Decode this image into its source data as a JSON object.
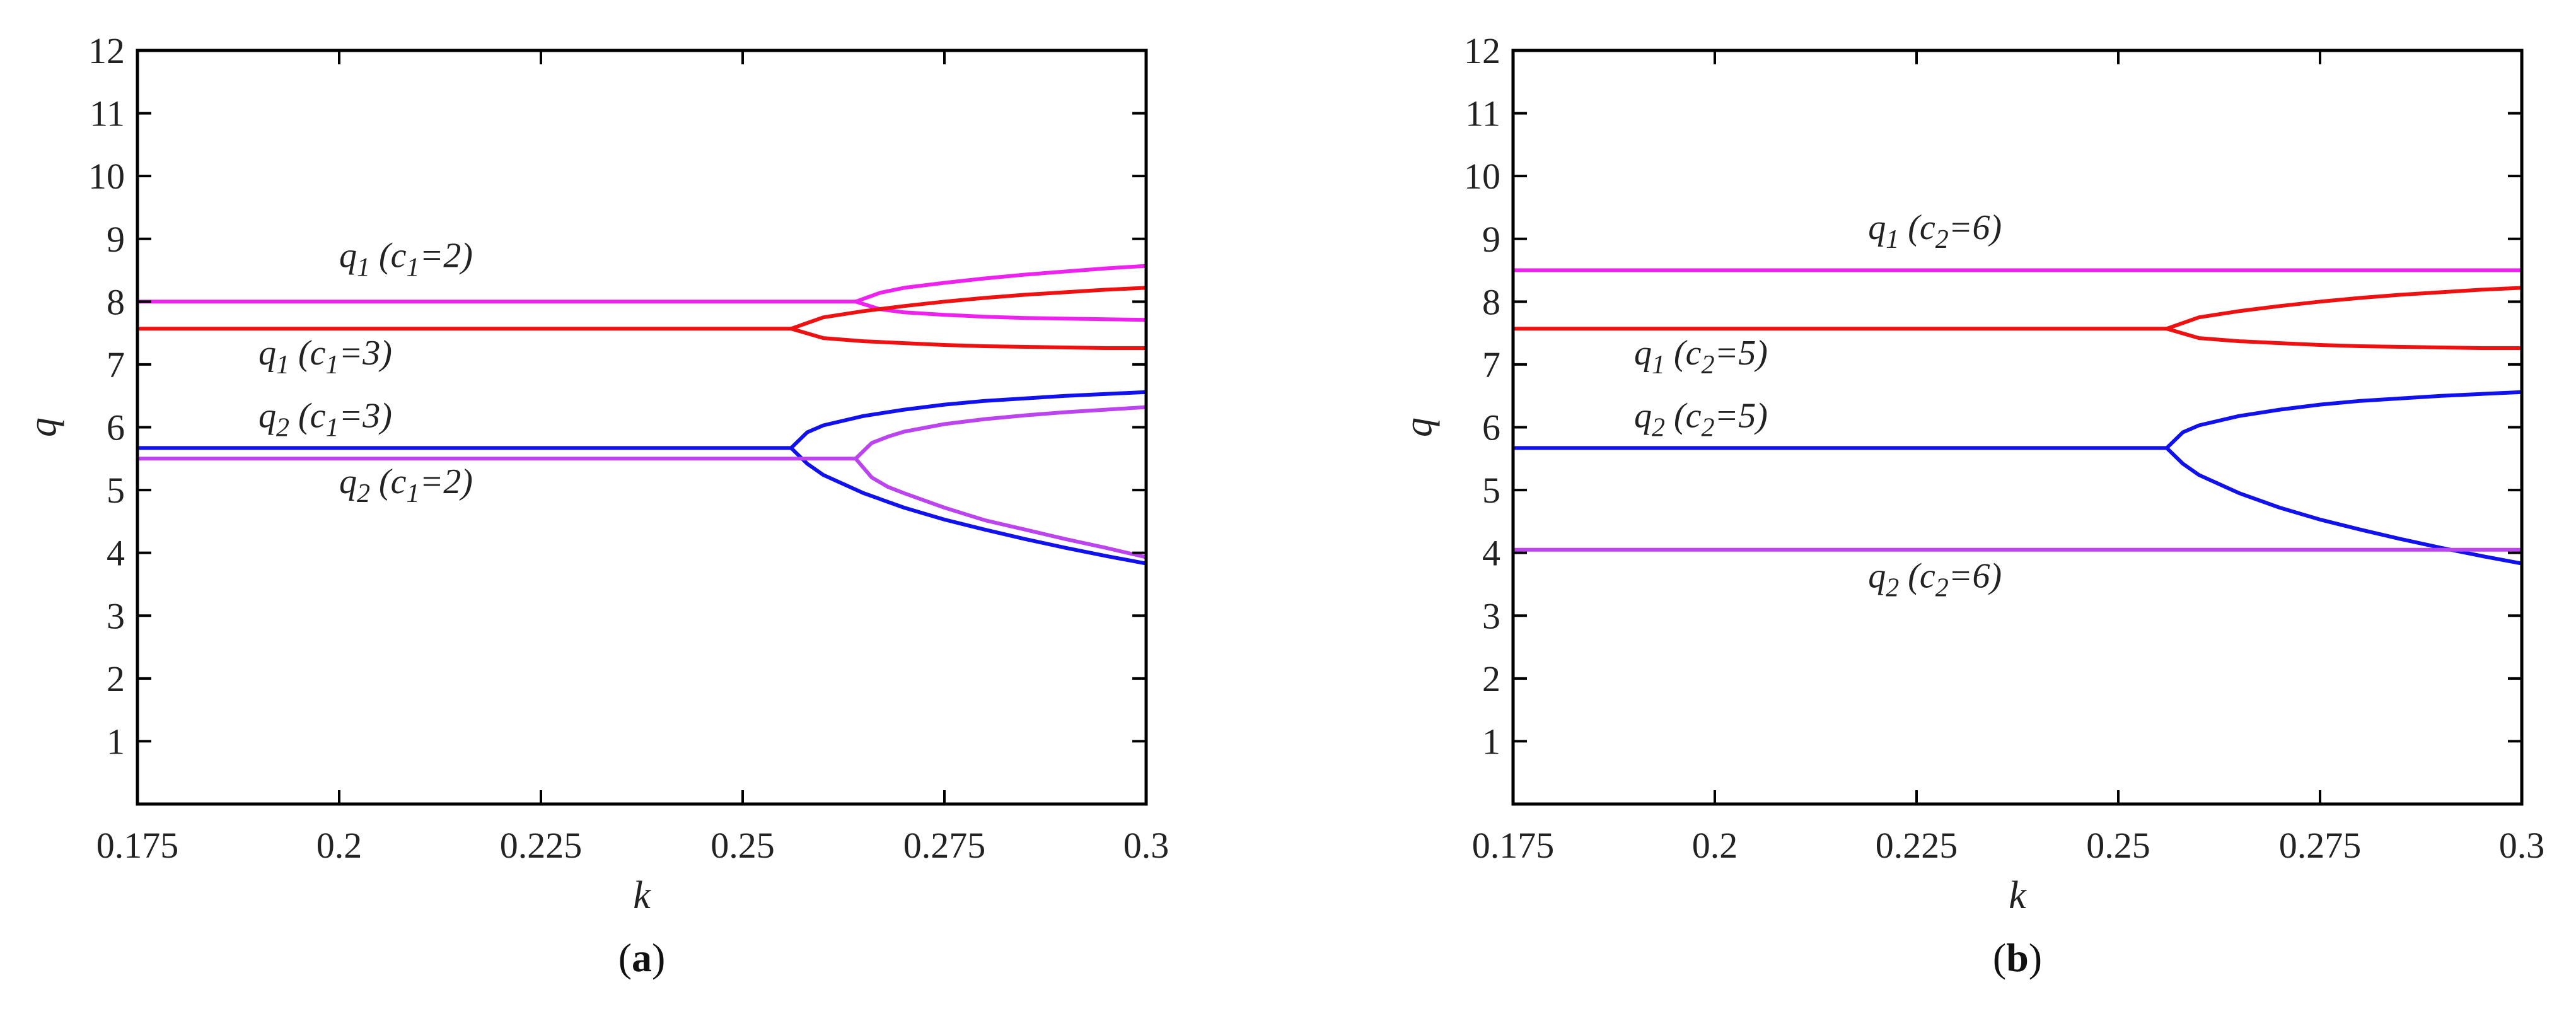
{
  "figure": {
    "background": "#ffffff"
  },
  "chart_data": [
    {
      "id": "a",
      "type": "line",
      "panel_label": {
        "open": "(",
        "letter": "a",
        "close": ")"
      },
      "xlabel": "k",
      "ylabel": "q",
      "xlim": [
        0.175,
        0.3
      ],
      "ylim": [
        0,
        12
      ],
      "xticks": [
        0.175,
        0.2,
        0.225,
        0.25,
        0.275,
        0.3
      ],
      "xtick_labels": [
        "0.175",
        "0.2",
        "0.225",
        "0.25",
        "0.275",
        "0.3"
      ],
      "yticks": [
        1,
        2,
        3,
        4,
        5,
        6,
        7,
        8,
        9,
        10,
        11,
        12
      ],
      "ytick_labels": [
        "1",
        "2",
        "3",
        "4",
        "5",
        "6",
        "7",
        "8",
        "9",
        "10",
        "11",
        "12"
      ],
      "grid": false,
      "series": [
        {
          "color": "#ee22ee",
          "x": [
            0.175,
            0.264
          ],
          "y": [
            8.0,
            8.0
          ]
        },
        {
          "color": "#ee22ee",
          "x": [
            0.264,
            0.267,
            0.27,
            0.275,
            0.28,
            0.285,
            0.29,
            0.295,
            0.3
          ],
          "y": [
            8.0,
            8.14,
            8.22,
            8.3,
            8.37,
            8.43,
            8.48,
            8.53,
            8.57
          ]
        },
        {
          "color": "#ee22ee",
          "x": [
            0.264,
            0.267,
            0.27,
            0.275,
            0.28,
            0.285,
            0.29,
            0.295,
            0.3
          ],
          "y": [
            8.0,
            7.88,
            7.83,
            7.79,
            7.76,
            7.74,
            7.73,
            7.72,
            7.71
          ]
        },
        {
          "color": "#ee1111",
          "x": [
            0.175,
            0.256
          ],
          "y": [
            7.57,
            7.57
          ]
        },
        {
          "color": "#ee1111",
          "x": [
            0.256,
            0.26,
            0.265,
            0.27,
            0.275,
            0.28,
            0.285,
            0.29,
            0.295,
            0.3
          ],
          "y": [
            7.57,
            7.75,
            7.85,
            7.93,
            8.0,
            8.06,
            8.11,
            8.15,
            8.19,
            8.22
          ]
        },
        {
          "color": "#ee1111",
          "x": [
            0.256,
            0.26,
            0.265,
            0.27,
            0.275,
            0.28,
            0.285,
            0.29,
            0.295,
            0.3
          ],
          "y": [
            7.57,
            7.42,
            7.37,
            7.34,
            7.31,
            7.29,
            7.28,
            7.27,
            7.26,
            7.26
          ]
        },
        {
          "color": "#1111ee",
          "x": [
            0.175,
            0.256
          ],
          "y": [
            5.67,
            5.67
          ]
        },
        {
          "color": "#1111ee",
          "x": [
            0.256,
            0.258,
            0.26,
            0.265,
            0.27,
            0.275,
            0.28,
            0.285,
            0.29,
            0.295,
            0.3
          ],
          "y": [
            5.67,
            5.92,
            6.03,
            6.18,
            6.28,
            6.36,
            6.42,
            6.46,
            6.5,
            6.53,
            6.56
          ]
        },
        {
          "color": "#1111ee",
          "x": [
            0.256,
            0.258,
            0.26,
            0.265,
            0.27,
            0.275,
            0.28,
            0.285,
            0.29,
            0.295,
            0.3
          ],
          "y": [
            5.67,
            5.42,
            5.24,
            4.95,
            4.72,
            4.53,
            4.37,
            4.22,
            4.08,
            3.95,
            3.83
          ]
        },
        {
          "color": "#bb44ee",
          "x": [
            0.175,
            0.264
          ],
          "y": [
            5.5,
            5.5
          ]
        },
        {
          "color": "#bb44ee",
          "x": [
            0.264,
            0.266,
            0.268,
            0.27,
            0.275,
            0.28,
            0.285,
            0.29,
            0.295,
            0.3
          ],
          "y": [
            5.5,
            5.75,
            5.85,
            5.93,
            6.05,
            6.13,
            6.19,
            6.24,
            6.28,
            6.32
          ]
        },
        {
          "color": "#bb44ee",
          "x": [
            0.264,
            0.266,
            0.268,
            0.27,
            0.275,
            0.28,
            0.285,
            0.29,
            0.295,
            0.3
          ],
          "y": [
            5.5,
            5.2,
            5.05,
            4.95,
            4.72,
            4.52,
            4.37,
            4.22,
            4.08,
            3.93
          ]
        }
      ],
      "annotations": [
        {
          "q": "q",
          "qsub": "1",
          "open": " (",
          "c": "c",
          "csub": "1",
          "eq": "=2)",
          "x": 0.2,
          "y": 8.55
        },
        {
          "q": "q",
          "qsub": "1",
          "open": " (",
          "c": "c",
          "csub": "1",
          "eq": "=3)",
          "x": 0.19,
          "y": 7.0
        },
        {
          "q": "q",
          "qsub": "2",
          "open": " (",
          "c": "c",
          "csub": "1",
          "eq": "=3)",
          "x": 0.19,
          "y": 6.0
        },
        {
          "q": "q",
          "qsub": "2",
          "open": " (",
          "c": "c",
          "csub": "1",
          "eq": "=2)",
          "x": 0.2,
          "y": 4.95
        }
      ]
    },
    {
      "id": "b",
      "type": "line",
      "panel_label": {
        "open": "(",
        "letter": "b",
        "close": ")"
      },
      "xlabel": "k",
      "ylabel": "q",
      "xlim": [
        0.175,
        0.3
      ],
      "ylim": [
        0,
        12
      ],
      "xticks": [
        0.175,
        0.2,
        0.225,
        0.25,
        0.275,
        0.3
      ],
      "xtick_labels": [
        "0.175",
        "0.2",
        "0.225",
        "0.25",
        "0.275",
        "0.3"
      ],
      "yticks": [
        1,
        2,
        3,
        4,
        5,
        6,
        7,
        8,
        9,
        10,
        11,
        12
      ],
      "ytick_labels": [
        "1",
        "2",
        "3",
        "4",
        "5",
        "6",
        "7",
        "8",
        "9",
        "10",
        "11",
        "12"
      ],
      "grid": false,
      "series": [
        {
          "color": "#ee22ee",
          "x": [
            0.175,
            0.3
          ],
          "y": [
            8.5,
            8.5
          ]
        },
        {
          "color": "#ee1111",
          "x": [
            0.175,
            0.256
          ],
          "y": [
            7.57,
            7.57
          ]
        },
        {
          "color": "#ee1111",
          "x": [
            0.256,
            0.26,
            0.265,
            0.27,
            0.275,
            0.28,
            0.285,
            0.29,
            0.295,
            0.3
          ],
          "y": [
            7.57,
            7.75,
            7.85,
            7.93,
            8.0,
            8.06,
            8.11,
            8.15,
            8.19,
            8.22
          ]
        },
        {
          "color": "#ee1111",
          "x": [
            0.256,
            0.26,
            0.265,
            0.27,
            0.275,
            0.28,
            0.285,
            0.29,
            0.295,
            0.3
          ],
          "y": [
            7.57,
            7.42,
            7.37,
            7.34,
            7.31,
            7.29,
            7.28,
            7.27,
            7.26,
            7.26
          ]
        },
        {
          "color": "#1111ee",
          "x": [
            0.175,
            0.256
          ],
          "y": [
            5.67,
            5.67
          ]
        },
        {
          "color": "#1111ee",
          "x": [
            0.256,
            0.258,
            0.26,
            0.265,
            0.27,
            0.275,
            0.28,
            0.285,
            0.29,
            0.295,
            0.3
          ],
          "y": [
            5.67,
            5.92,
            6.03,
            6.18,
            6.28,
            6.36,
            6.42,
            6.46,
            6.5,
            6.53,
            6.56
          ]
        },
        {
          "color": "#1111ee",
          "x": [
            0.256,
            0.258,
            0.26,
            0.265,
            0.27,
            0.275,
            0.28,
            0.285,
            0.29,
            0.295,
            0.3
          ],
          "y": [
            5.67,
            5.42,
            5.24,
            4.95,
            4.72,
            4.53,
            4.37,
            4.22,
            4.08,
            3.95,
            3.83
          ]
        },
        {
          "color": "#bb44ee",
          "x": [
            0.175,
            0.3
          ],
          "y": [
            4.05,
            4.05
          ]
        }
      ],
      "annotations": [
        {
          "q": "q",
          "qsub": "1",
          "open": " (",
          "c": "c",
          "csub": "2",
          "eq": "=6)",
          "x": 0.219,
          "y": 9.0
        },
        {
          "q": "q",
          "qsub": "1",
          "open": " (",
          "c": "c",
          "csub": "2",
          "eq": "=5)",
          "x": 0.19,
          "y": 7.0
        },
        {
          "q": "q",
          "qsub": "2",
          "open": " (",
          "c": "c",
          "csub": "2",
          "eq": "=5)",
          "x": 0.19,
          "y": 6.0
        },
        {
          "q": "q",
          "qsub": "2",
          "open": " (",
          "c": "c",
          "csub": "2",
          "eq": "=6)",
          "x": 0.219,
          "y": 3.45
        }
      ]
    }
  ]
}
